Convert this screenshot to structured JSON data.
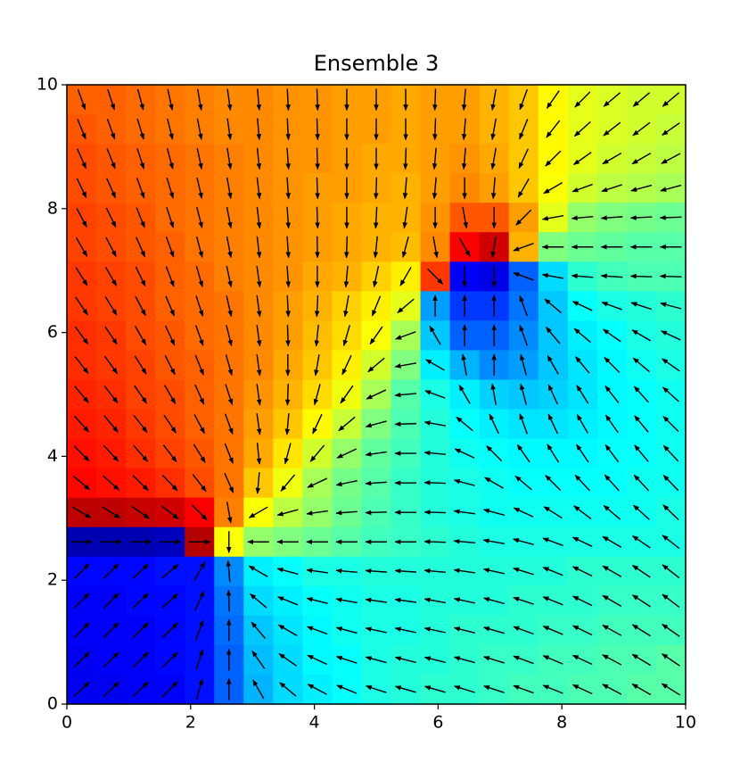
{
  "chart_data": {
    "type": "heatmap",
    "title": "Ensemble 3",
    "xlim": [
      0,
      10
    ],
    "ylim": [
      0,
      10
    ],
    "xticks": [
      0,
      2,
      4,
      6,
      8,
      10
    ],
    "yticks": [
      0,
      2,
      4,
      6,
      8,
      10
    ],
    "colormap": "jet",
    "zlim": [
      0,
      100
    ],
    "arrow_color": "#000000",
    "z": [
      [
        78,
        78,
        77,
        76,
        75,
        74,
        74,
        73,
        73,
        72,
        72,
        71,
        72,
        72,
        70,
        68,
        63,
        60,
        59,
        58,
        58
      ],
      [
        79,
        78,
        77,
        76,
        75,
        74,
        74,
        73,
        73,
        72,
        72,
        71,
        72,
        72,
        70,
        68,
        63,
        60,
        59,
        58,
        57
      ],
      [
        80,
        79,
        78,
        77,
        76,
        75,
        74,
        73,
        73,
        72,
        71,
        71,
        72,
        73,
        71,
        68,
        63,
        60,
        58,
        57,
        56
      ],
      [
        80,
        79,
        78,
        77,
        76,
        75,
        74,
        73,
        72,
        72,
        71,
        70,
        72,
        74,
        72,
        68,
        62,
        58,
        56,
        55,
        54
      ],
      [
        81,
        80,
        79,
        77,
        76,
        75,
        74,
        73,
        72,
        71,
        70,
        70,
        73,
        79,
        79,
        72,
        60,
        52,
        50,
        49,
        48
      ],
      [
        81,
        80,
        79,
        78,
        76,
        75,
        74,
        73,
        72,
        71,
        70,
        69,
        74,
        88,
        92,
        70,
        50,
        48,
        47,
        46,
        46
      ],
      [
        82,
        81,
        80,
        78,
        77,
        75,
        74,
        73,
        71,
        70,
        67,
        64,
        82,
        12,
        10,
        22,
        34,
        42,
        44,
        45,
        45
      ],
      [
        82,
        81,
        80,
        78,
        77,
        76,
        74,
        72,
        70,
        67,
        64,
        60,
        28,
        18,
        18,
        24,
        32,
        38,
        40,
        41,
        42
      ],
      [
        83,
        82,
        80,
        79,
        77,
        76,
        74,
        72,
        69,
        66,
        62,
        54,
        32,
        22,
        22,
        26,
        32,
        36,
        38,
        40,
        41
      ],
      [
        83,
        82,
        81,
        79,
        78,
        76,
        74,
        71,
        68,
        64,
        58,
        50,
        36,
        30,
        26,
        28,
        32,
        35,
        37,
        39,
        40
      ],
      [
        84,
        83,
        81,
        80,
        78,
        76,
        73,
        70,
        66,
        61,
        54,
        46,
        40,
        36,
        33,
        32,
        33,
        35,
        37,
        38,
        39
      ],
      [
        85,
        84,
        82,
        80,
        78,
        76,
        72,
        68,
        63,
        57,
        50,
        45,
        41,
        38,
        36,
        35,
        35,
        36,
        37,
        38,
        39
      ],
      [
        86,
        85,
        83,
        81,
        79,
        76,
        71,
        65,
        58,
        52,
        47,
        44,
        41,
        39,
        38,
        37,
        37,
        37,
        38,
        38,
        39
      ],
      [
        87,
        86,
        85,
        83,
        80,
        76,
        68,
        61,
        54,
        49,
        46,
        43,
        41,
        40,
        39,
        38,
        38,
        38,
        38,
        39,
        39
      ],
      [
        94,
        94,
        93,
        92,
        88,
        75,
        62,
        56,
        52,
        48,
        45,
        43,
        41,
        40,
        39,
        39,
        39,
        39,
        39,
        39,
        40
      ],
      [
        5,
        5,
        5,
        6,
        95,
        62,
        52,
        50,
        48,
        46,
        44,
        43,
        42,
        41,
        40,
        40,
        40,
        40,
        40,
        40,
        40
      ],
      [
        13,
        13,
        13,
        14,
        14,
        26,
        36,
        38,
        40,
        40,
        41,
        41,
        41,
        41,
        41,
        41,
        41,
        42,
        42,
        42,
        42
      ],
      [
        12,
        12,
        13,
        13,
        14,
        24,
        34,
        36,
        38,
        39,
        40,
        40,
        41,
        41,
        41,
        42,
        42,
        42,
        43,
        43,
        43
      ],
      [
        12,
        12,
        12,
        13,
        14,
        23,
        32,
        35,
        37,
        39,
        40,
        40,
        41,
        42,
        42,
        42,
        43,
        43,
        44,
        44,
        44
      ],
      [
        11,
        12,
        12,
        13,
        14,
        22,
        31,
        34,
        37,
        38,
        40,
        41,
        41,
        42,
        43,
        43,
        44,
        44,
        45,
        45,
        46
      ],
      [
        11,
        11,
        12,
        12,
        14,
        22,
        30,
        34,
        36,
        38,
        40,
        41,
        42,
        42,
        43,
        44,
        44,
        45,
        45,
        46,
        46
      ]
    ],
    "arrow_angles": [
      [
        -70,
        -72,
        -75,
        -78,
        -80,
        -82,
        -85,
        -87,
        -88,
        -90,
        -90,
        -90,
        -92,
        -95,
        -100,
        -110,
        -125,
        -135,
        -140,
        -140,
        -140
      ],
      [
        -68,
        -70,
        -73,
        -76,
        -79,
        -82,
        -85,
        -87,
        -88,
        -90,
        -90,
        -90,
        -92,
        -95,
        -100,
        -112,
        -128,
        -138,
        -142,
        -143,
        -145
      ],
      [
        -66,
        -68,
        -72,
        -75,
        -78,
        -81,
        -84,
        -86,
        -88,
        -90,
        -90,
        -92,
        -95,
        -95,
        -100,
        -115,
        -135,
        -145,
        -150,
        -150,
        -152
      ],
      [
        -64,
        -66,
        -70,
        -73,
        -77,
        -80,
        -83,
        -86,
        -88,
        -90,
        -92,
        -95,
        -95,
        -90,
        -95,
        -120,
        -150,
        -160,
        -162,
        -165,
        -165
      ],
      [
        -62,
        -64,
        -68,
        -72,
        -76,
        -79,
        -83,
        -86,
        -88,
        -90,
        -93,
        -98,
        -90,
        -80,
        -90,
        -135,
        -170,
        -175,
        -176,
        -177,
        -178
      ],
      [
        -60,
        -62,
        -66,
        -70,
        -75,
        -79,
        -83,
        -86,
        -89,
        -92,
        -96,
        -105,
        -80,
        -60,
        -100,
        -160,
        180,
        180,
        180,
        180,
        180
      ],
      [
        -58,
        -60,
        -64,
        -69,
        -74,
        -78,
        -82,
        -86,
        -90,
        -95,
        -102,
        -120,
        -45,
        -90,
        -90,
        160,
        170,
        175,
        176,
        178,
        178
      ],
      [
        -56,
        -58,
        -62,
        -67,
        -72,
        -77,
        -82,
        -87,
        -93,
        -100,
        -112,
        -140,
        90,
        90,
        90,
        110,
        140,
        155,
        160,
        162,
        165
      ],
      [
        -54,
        -56,
        -60,
        -65,
        -70,
        -76,
        -82,
        -88,
        -96,
        -106,
        -125,
        -160,
        120,
        90,
        90,
        110,
        130,
        140,
        145,
        150,
        155
      ],
      [
        -52,
        -54,
        -58,
        -63,
        -68,
        -74,
        -82,
        -90,
        -100,
        -115,
        -140,
        -170,
        150,
        100,
        90,
        105,
        120,
        130,
        135,
        140,
        145
      ],
      [
        -50,
        -52,
        -55,
        -60,
        -66,
        -72,
        -82,
        -92,
        -105,
        -125,
        -155,
        -175,
        160,
        120,
        100,
        105,
        115,
        122,
        128,
        132,
        138
      ],
      [
        -48,
        -50,
        -52,
        -56,
        -62,
        -70,
        -82,
        -95,
        -115,
        -140,
        -165,
        -178,
        170,
        140,
        115,
        110,
        115,
        120,
        125,
        130,
        135
      ],
      [
        -45,
        -47,
        -49,
        -52,
        -58,
        -68,
        -84,
        -105,
        -130,
        -155,
        -172,
        180,
        175,
        155,
        135,
        125,
        122,
        124,
        127,
        130,
        133
      ],
      [
        -40,
        -42,
        -44,
        -46,
        -52,
        -66,
        -95,
        -130,
        -155,
        -168,
        -176,
        180,
        178,
        165,
        150,
        140,
        135,
        133,
        132,
        133,
        134
      ],
      [
        -30,
        -32,
        -35,
        -38,
        -45,
        -80,
        -150,
        -165,
        -172,
        -176,
        -178,
        180,
        178,
        172,
        165,
        155,
        148,
        143,
        140,
        138,
        136
      ],
      [
        0,
        0,
        0,
        0,
        0,
        -90,
        180,
        180,
        180,
        180,
        180,
        180,
        178,
        175,
        170,
        165,
        160,
        155,
        150,
        146,
        142
      ],
      [
        45,
        45,
        43,
        40,
        60,
        95,
        150,
        165,
        172,
        175,
        176,
        176,
        175,
        172,
        168,
        163,
        158,
        154,
        150,
        146,
        142
      ],
      [
        45,
        45,
        43,
        42,
        65,
        92,
        140,
        158,
        166,
        170,
        172,
        172,
        170,
        168,
        165,
        162,
        158,
        154,
        150,
        147,
        143
      ],
      [
        45,
        45,
        44,
        43,
        70,
        90,
        130,
        150,
        160,
        165,
        168,
        168,
        168,
        166,
        164,
        160,
        157,
        154,
        151,
        148,
        145
      ],
      [
        44,
        44,
        44,
        44,
        72,
        90,
        125,
        145,
        155,
        162,
        165,
        166,
        166,
        165,
        163,
        160,
        157,
        155,
        152,
        149,
        146
      ],
      [
        43,
        43,
        43,
        44,
        74,
        90,
        120,
        140,
        152,
        158,
        162,
        164,
        164,
        163,
        162,
        160,
        158,
        155,
        152,
        150,
        148
      ]
    ]
  }
}
